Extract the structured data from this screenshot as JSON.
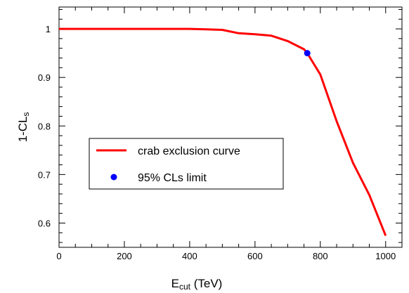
{
  "chart_data": {
    "type": "line",
    "xlabel": "E",
    "xlabel_sub": "cut",
    "xlabel_unit": " (TeV)",
    "ylabel": "1-CL",
    "ylabel_sub": "s",
    "xlim": [
      0,
      1050
    ],
    "ylim": [
      0.55,
      1.045
    ],
    "xticks": [
      0,
      200,
      400,
      600,
      800,
      1000
    ],
    "yticks": [
      0.6,
      0.7,
      0.8,
      0.9,
      1
    ],
    "grid": false,
    "legend_position": "center-left",
    "series": [
      {
        "name": "crab exclusion curve",
        "kind": "line",
        "color": "#ff0000",
        "x": [
          0,
          100,
          200,
          300,
          400,
          450,
          500,
          550,
          600,
          650,
          700,
          750,
          760,
          800,
          850,
          900,
          950,
          1000
        ],
        "y": [
          1.0,
          1.0,
          1.0,
          1.0,
          1.0,
          0.999,
          0.998,
          0.991,
          0.989,
          0.986,
          0.975,
          0.958,
          0.95,
          0.906,
          0.81,
          0.724,
          0.658,
          0.574
        ]
      },
      {
        "name": "95% CLs limit",
        "kind": "point",
        "color": "#0000ff",
        "x": [
          760
        ],
        "y": [
          0.95
        ]
      }
    ]
  }
}
